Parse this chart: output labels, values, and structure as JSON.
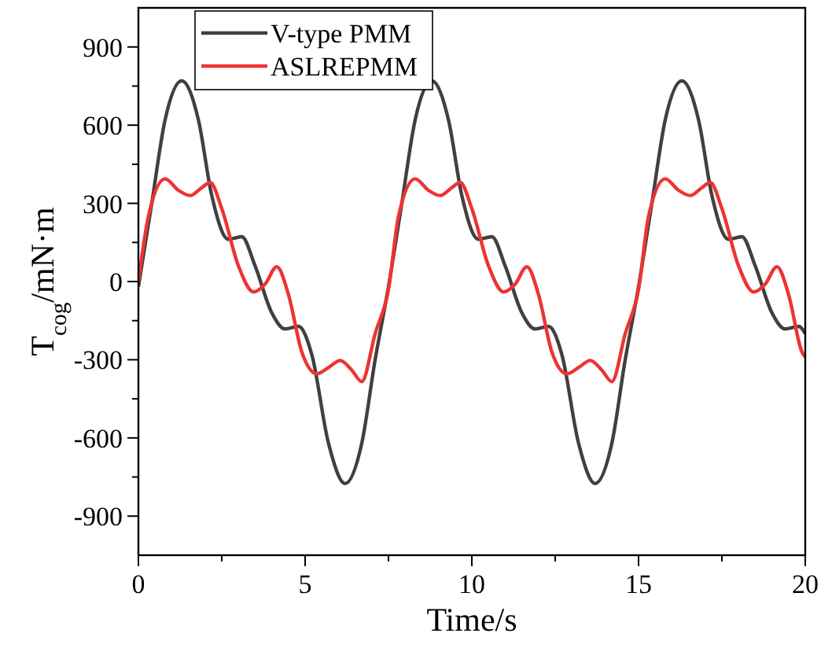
{
  "chart_data": {
    "type": "line",
    "xlabel": "Time/s",
    "ylabel": "T$_{cog}$/mN·m",
    "xlim": [
      0,
      20
    ],
    "xticks": [
      0,
      {
        "value": 2.5,
        "label": null
      },
      5,
      {
        "value": 7.5,
        "label": null
      },
      10,
      {
        "value": 12.5,
        "label": null
      },
      15,
      {
        "value": 17.5,
        "label": null
      },
      20
    ],
    "ylim": [
      -1050,
      1050
    ],
    "yticks": [
      -900,
      {
        "value": -750,
        "label": null
      },
      -600,
      {
        "value": -450,
        "label": null
      },
      -300,
      {
        "value": -150,
        "label": null
      },
      0,
      {
        "value": 150,
        "label": null
      },
      300,
      {
        "value": 450,
        "label": null
      },
      600,
      {
        "value": 750,
        "label": null
      },
      900
    ],
    "grid": false,
    "legend": "top left",
    "line_style": "solid",
    "marker": "none",
    "series": [
      {
        "name": "V-type PMM",
        "color": "#404040",
        "x": [
          0,
          0.4,
          0.8,
          1.3,
          1.8,
          2.2,
          2.7,
          3.1,
          3.5,
          4,
          4.4,
          4.8,
          5.2,
          5.7,
          6.2,
          6.7,
          7.1,
          7.5,
          7.9,
          8.3,
          8.8,
          9.3,
          9.7,
          10.2,
          10.6,
          11,
          11.5,
          11.9,
          12.3,
          12.7,
          13.2,
          13.7,
          14.2,
          14.6,
          15,
          15.4,
          15.8,
          16.3,
          16.8,
          17.2,
          17.7,
          18.1,
          18.5,
          19,
          19.4,
          19.8,
          20
        ],
        "values": [
          -20,
          300,
          620,
          770,
          620,
          330,
          162,
          172,
          60,
          -120,
          -182,
          -172,
          -280,
          -620,
          -775,
          -620,
          -300,
          -20,
          300,
          620,
          770,
          620,
          330,
          162,
          172,
          60,
          -120,
          -182,
          -172,
          -280,
          -620,
          -775,
          -620,
          -300,
          -20,
          300,
          620,
          770,
          620,
          330,
          162,
          172,
          60,
          -120,
          -182,
          -172,
          -200
        ]
      },
      {
        "name": "ASLREPMM",
        "color": "#ee3333",
        "x": [
          0,
          0.3,
          0.8,
          1.2,
          1.55,
          1.9,
          2.15,
          2.5,
          3,
          3.45,
          3.8,
          4.15,
          4.5,
          4.9,
          5.35,
          5.7,
          6.05,
          6.4,
          6.7,
          7.1,
          7.5,
          7.8,
          8.3,
          8.7,
          9.05,
          9.4,
          9.65,
          10,
          10.5,
          10.95,
          11.3,
          11.65,
          12,
          12.4,
          12.85,
          13.2,
          13.55,
          13.9,
          14.2,
          14.6,
          15,
          15.3,
          15.8,
          16.2,
          16.55,
          16.9,
          17.15,
          17.5,
          18,
          18.45,
          18.8,
          19.15,
          19.5,
          19.9,
          20
        ],
        "values": [
          0,
          250,
          394,
          350,
          330,
          360,
          380,
          280,
          60,
          -40,
          -10,
          57,
          -50,
          -270,
          -354,
          -330,
          -303,
          -340,
          -384,
          -200,
          -30,
          250,
          394,
          350,
          330,
          360,
          380,
          280,
          60,
          -40,
          -10,
          57,
          -50,
          -270,
          -354,
          -330,
          -303,
          -340,
          -384,
          -200,
          -30,
          250,
          394,
          350,
          330,
          360,
          380,
          280,
          60,
          -40,
          -10,
          57,
          -50,
          -270,
          -290
        ]
      }
    ]
  }
}
